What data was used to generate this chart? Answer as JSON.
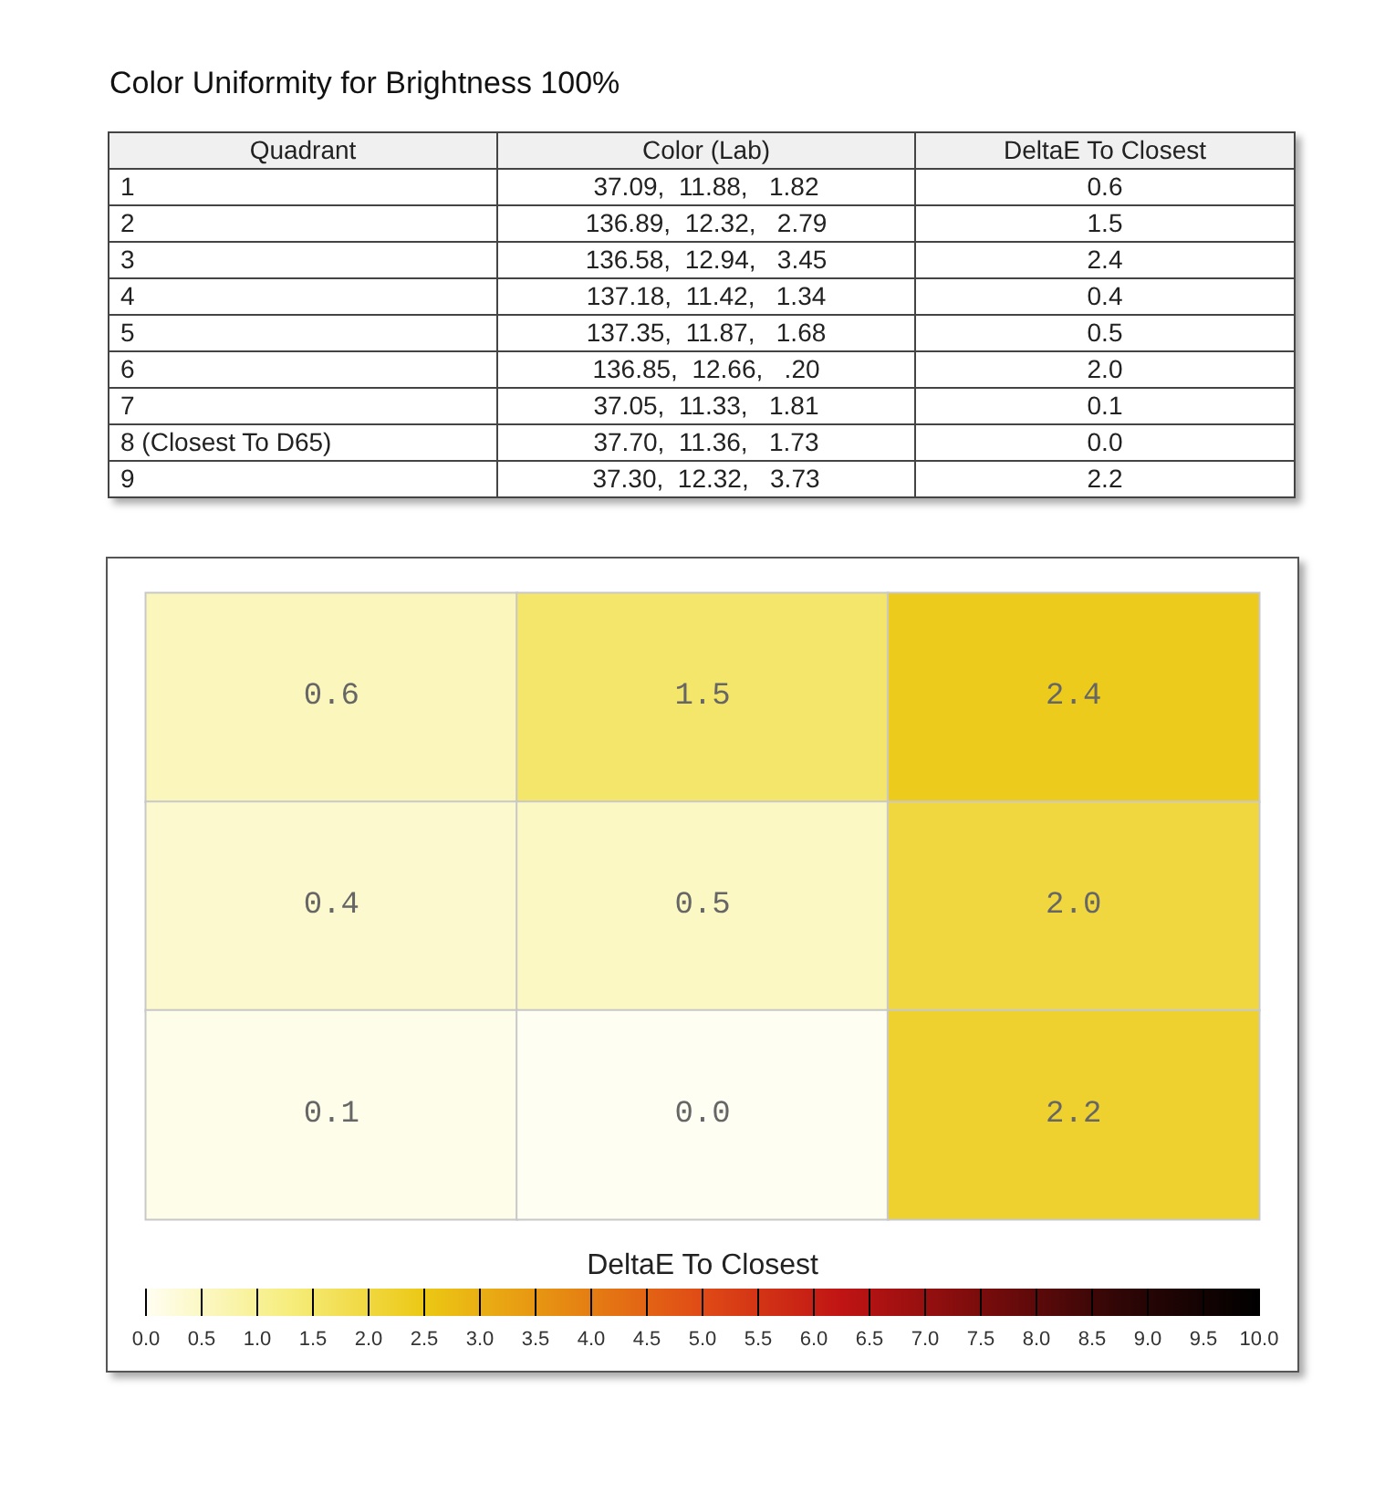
{
  "chart_data": [
    {
      "type": "other",
      "title": "Color Uniformity for Brightness 100%",
      "annotations": [
        "Quadrant",
        "Color (Lab)",
        "DeltaE To Closest",
        "37.09,  11.88,   1.82",
        "136.89,  12.32,   2.79",
        "136.58,  12.94,   3.45",
        "137.18,  11.42,   1.34",
        "137.35,  11.87,   1.68",
        "136.85,  12.66,   .20",
        "37.05,  11.33,   1.81",
        "37.70,  11.36,   1.73",
        "37.30,  12.32,   3.73",
        "0.6",
        "1.5",
        "2.4",
        "0.4",
        "0.5",
        "2.0",
        "0.1",
        "0.0",
        "2.2"
      ],
      "categories": [
        "1",
        "2",
        "3",
        "4",
        "5",
        "6",
        "7",
        "8 (Closest To D65)",
        "9"
      ]
    },
    {
      "type": "heatmap",
      "clabel": "DeltaE To Closest",
      "categories": [
        null,
        null,
        null
      ],
      "y_categories": [
        null,
        null,
        null
      ],
      "cells": [
        [
          0.6,
          1.5,
          2.4
        ],
        [
          0.4,
          0.5,
          2.0
        ],
        [
          0.1,
          0.0,
          2.2
        ]
      ],
      "cell_labels": [
        [
          "0.6",
          "1.5",
          "2.4"
        ],
        [
          "0.4",
          "0.5",
          "2.0"
        ],
        [
          "0.1",
          "0.0",
          "2.2"
        ]
      ],
      "clim": [
        0,
        10
      ],
      "cticks": [
        {
          "value": 0,
          "label": "0.0"
        },
        {
          "value": 0.5,
          "label": "0.5"
        },
        {
          "value": 1,
          "label": "1.0"
        },
        {
          "value": 1.5,
          "label": "1.5"
        },
        {
          "value": 2,
          "label": "2.0"
        },
        {
          "value": 2.5,
          "label": "2.5"
        },
        {
          "value": 3,
          "label": "3.0"
        },
        {
          "value": 3.5,
          "label": "3.5"
        },
        {
          "value": 4,
          "label": "4.0"
        },
        {
          "value": 4.5,
          "label": "4.5"
        },
        {
          "value": 5,
          "label": "5.0"
        },
        {
          "value": 5.5,
          "label": "5.5"
        },
        {
          "value": 6,
          "label": "6.0"
        },
        {
          "value": 6.5,
          "label": "6.5"
        },
        {
          "value": 7,
          "label": "7.0"
        },
        {
          "value": 7.5,
          "label": "7.5"
        },
        {
          "value": 8,
          "label": "8.0"
        },
        {
          "value": 8.5,
          "label": "8.5"
        },
        {
          "value": 9,
          "label": "9.0"
        },
        {
          "value": 9.5,
          "label": "9.5"
        },
        {
          "value": 10,
          "label": "10.0"
        }
      ]
    }
  ]
}
